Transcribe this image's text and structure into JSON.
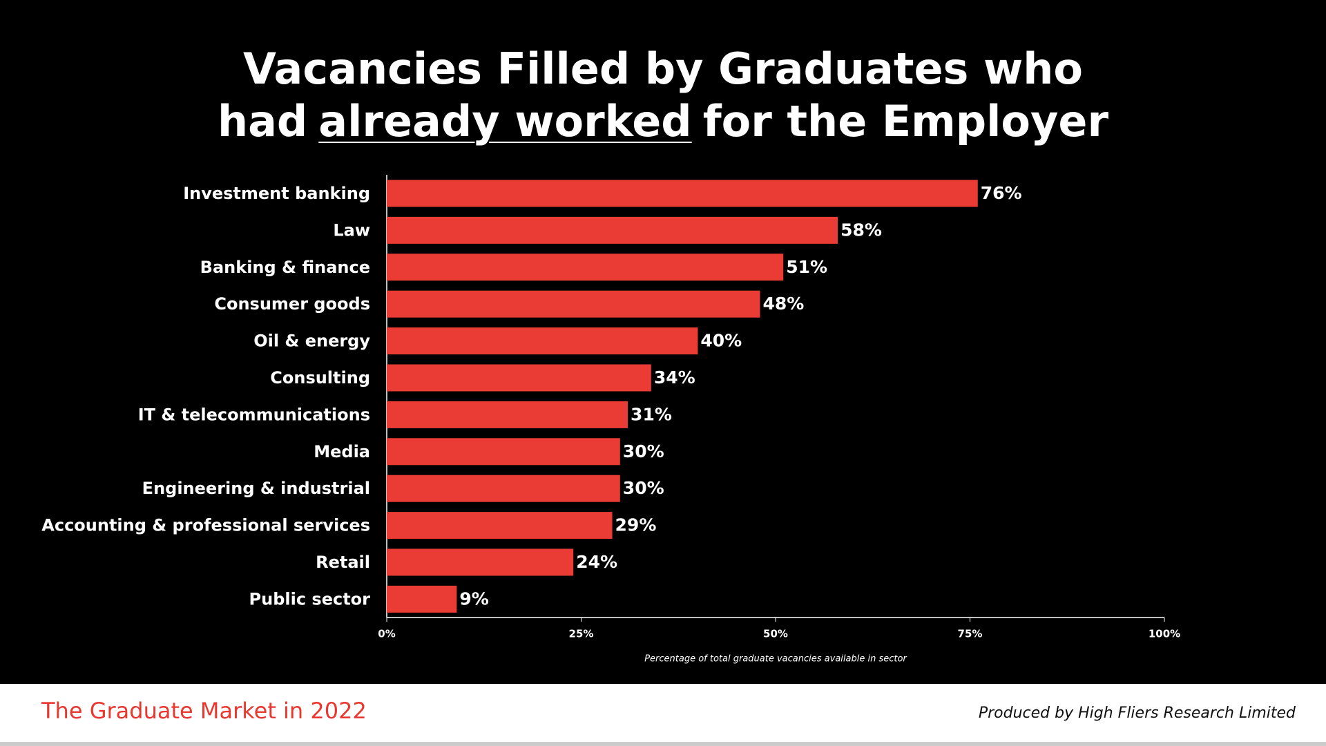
{
  "chart_data": {
    "type": "hbar",
    "title": [
      "Vacancies Filled by Graduates who",
      "had",
      "already worked",
      "for the Employer"
    ],
    "title_underlined": [
      false,
      false,
      true,
      false
    ],
    "categories": [
      "Investment banking",
      "Law",
      "Banking & finance",
      "Consumer goods",
      "Oil & energy",
      "Consulting",
      "IT & telecommunications",
      "Media",
      "Engineering & industrial",
      "Accounting & professional services",
      "Retail",
      "Public sector"
    ],
    "values": [
      76,
      58,
      51,
      48,
      40,
      34,
      31,
      30,
      30,
      29,
      24,
      9
    ],
    "value_labels": [
      "76%",
      "58%",
      "51%",
      "48%",
      "40%",
      "34%",
      "31%",
      "30%",
      "30%",
      "29%",
      "24%",
      "9%"
    ],
    "color": "#ea3c35",
    "xlim": [
      0,
      100
    ],
    "xticks": [
      {
        "value": 0,
        "label": "0%"
      },
      {
        "value": 25,
        "label": "25%"
      },
      {
        "value": 50,
        "label": "50%"
      },
      {
        "value": 75,
        "label": "75%"
      },
      {
        "value": 100,
        "label": "100%"
      }
    ],
    "x_label": "Percentage of total graduate vacancies available in sector"
  },
  "footer": {
    "left": "The Graduate Market in 2022",
    "right": "Produced by High Fliers Research Limited"
  }
}
